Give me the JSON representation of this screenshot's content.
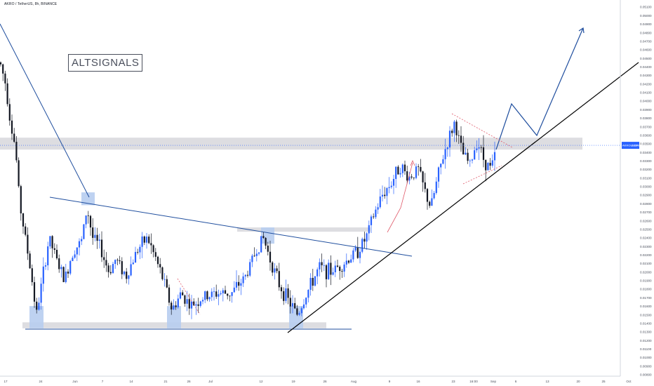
{
  "header": {
    "symbol_title": "AKRO / TetherUS, 8h, BINANCE"
  },
  "watermark": {
    "text": "ALTSIGNALS"
  },
  "chart_data": {
    "type": "candlestick",
    "symbol": "AKRO / TetherUS",
    "interval": "8h",
    "exchange": "BINANCE",
    "last_price_label": "AKROUSDT",
    "last_price": "0.03480",
    "price_axis": {
      "ticks": [
        "0.05100",
        "0.05000",
        "0.04900",
        "0.04800",
        "0.04700",
        "0.04600",
        "0.04500",
        "0.04400",
        "0.04300",
        "0.04200",
        "0.04100",
        "0.04000",
        "0.03900",
        "0.03800",
        "0.03700",
        "0.03600",
        "0.03500",
        "0.03400",
        "0.03300",
        "0.03200",
        "0.03100",
        "0.03000",
        "0.02900",
        "0.02800",
        "0.02700",
        "0.02600",
        "0.02500",
        "0.02400",
        "0.02300",
        "0.02200",
        "0.02100",
        "0.02000",
        "0.01900",
        "0.01800",
        "0.01700",
        "0.01600",
        "0.01500",
        "0.01400",
        "0.01300",
        "0.01200",
        "0.01100",
        "0.01000",
        "0.00900",
        "0.00800"
      ],
      "ylim": [
        0.0078,
        0.0518
      ]
    },
    "time_axis": {
      "ticks": [
        "17",
        "24",
        "Jun",
        "7",
        "14",
        "21",
        "26",
        "Jul",
        "12",
        "19",
        "26",
        "Aug",
        "9",
        "16",
        "23",
        "16:00",
        "Sep",
        "6",
        "13",
        "20",
        "25",
        "Oct"
      ]
    },
    "key_levels": {
      "support_zone": [
        0.0134,
        0.0141
      ],
      "resistance_zone": [
        0.0343,
        0.0357
      ],
      "mid_zone": [
        0.0247,
        0.0252
      ],
      "support_line": 0.01405
    },
    "pattern_points": {
      "start_high": 0.051,
      "projected_target": 0.0485,
      "breakout": 0.0395
    },
    "colors": {
      "up": "#2962ff",
      "down": "#131722",
      "trend": "#1f4e9e",
      "rising_support": "#000000",
      "zone": "#d9d9de",
      "highlight": "#b7cdef",
      "last_price_tag": "#2962ff",
      "dashed": "#e05a6a"
    },
    "grid": false
  }
}
